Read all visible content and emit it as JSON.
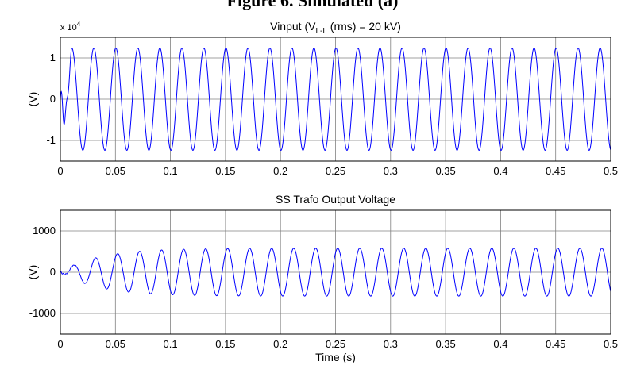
{
  "caption": "Figure 6. Simulated (a)",
  "chart_data": [
    {
      "type": "line",
      "title_main": "Vinput (V",
      "title_sub": "L-L",
      "title_rest": " (rms) = 20 kV)",
      "ylabel": "(V)",
      "xlabel": "",
      "exponent_base": "x 10",
      "exponent_power": "4",
      "xlim": [
        0,
        0.5
      ],
      "ylim": [
        -1.5,
        1.5
      ],
      "xticks": [
        0,
        0.05,
        0.1,
        0.15,
        0.2,
        0.25,
        0.3,
        0.35,
        0.4,
        0.45,
        0.5
      ],
      "xtick_labels": [
        "0",
        "0.05",
        "0.1",
        "0.15",
        "0.2",
        "0.25",
        "0.3",
        "0.35",
        "0.4",
        "0.45",
        "0.5"
      ],
      "yticks": [
        -1,
        0,
        1
      ],
      "ytick_labels": [
        "-1",
        "0",
        "1"
      ],
      "grid": true,
      "series": [
        {
          "color": "#0000ff",
          "frequency_hz": 50,
          "amplitude": 1.24,
          "transient_end_s": 0.01
        }
      ]
    },
    {
      "type": "line",
      "title_main": "SS Trafo Output Voltage",
      "title_sub": "",
      "title_rest": "",
      "ylabel": "(V)",
      "xlabel": "Time (s)",
      "xlim": [
        0,
        0.5
      ],
      "ylim": [
        -1500,
        1500
      ],
      "xticks": [
        0,
        0.05,
        0.1,
        0.15,
        0.2,
        0.25,
        0.3,
        0.35,
        0.4,
        0.45,
        0.5
      ],
      "xtick_labels": [
        "0",
        "0.05",
        "0.1",
        "0.15",
        "0.2",
        "0.25",
        "0.3",
        "0.35",
        "0.4",
        "0.45",
        "0.5"
      ],
      "yticks": [
        -1000,
        0,
        1000
      ],
      "ytick_labels": [
        "-1000",
        "0",
        "1000"
      ],
      "grid": true,
      "series": [
        {
          "color": "#0000ff",
          "frequency_hz": 50,
          "amplitude": 580,
          "rise_time_s": 0.035
        }
      ]
    }
  ]
}
